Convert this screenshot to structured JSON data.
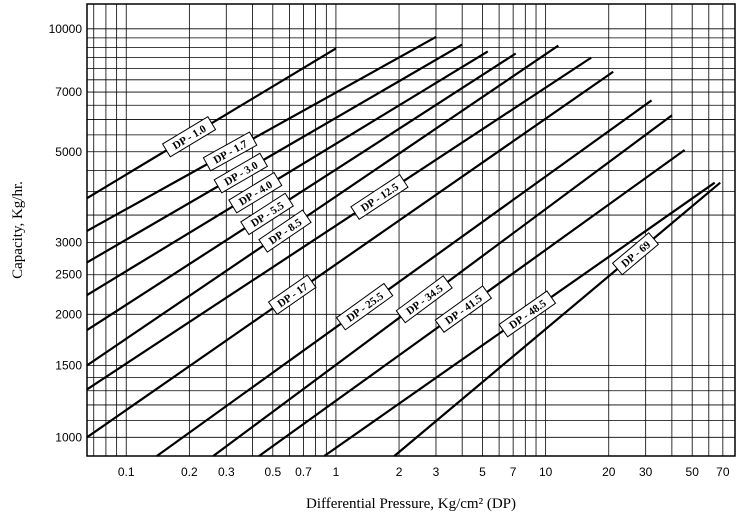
{
  "chart_data": {
    "type": "line",
    "title": "",
    "xlabel": "Differential Pressure, Kg/cm² (DP)",
    "ylabel": "Capacity, Kg/hr.",
    "x_scale": "log",
    "y_scale": "log",
    "xlim": [
      0.065,
      80
    ],
    "ylim": [
      900,
      11500
    ],
    "x_ticks": [
      0.1,
      0.2,
      0.3,
      0.5,
      0.7,
      1,
      2,
      3,
      5,
      7,
      10,
      20,
      30,
      50,
      70
    ],
    "x_tick_labels": [
      "0.1",
      "0.2",
      "0.3",
      "0.5",
      "0.7",
      "1",
      "2",
      "3",
      "5",
      "7",
      "10",
      "20",
      "30",
      "50",
      "70"
    ],
    "y_ticks": [
      1000,
      1500,
      2000,
      2500,
      3000,
      5000,
      7000,
      10000
    ],
    "y_tick_labels": [
      "1000",
      "1500",
      "2000",
      "2500",
      "3000",
      "5000",
      "7000",
      "10000"
    ],
    "grid": true,
    "series": [
      {
        "name": "DP - 1.0",
        "x": [
          0.065,
          1.0
        ],
        "y": [
          3850,
          8950
        ]
      },
      {
        "name": "DP - 1.7",
        "x": [
          0.065,
          3.0
        ],
        "y": [
          3200,
          9550
        ]
      },
      {
        "name": "DP - 3.0",
        "x": [
          0.065,
          4.0
        ],
        "y": [
          2680,
          9150
        ]
      },
      {
        "name": "DP - 4.0",
        "x": [
          0.065,
          5.3
        ],
        "y": [
          2230,
          8800
        ]
      },
      {
        "name": "DP - 5.5",
        "x": [
          0.065,
          7.2
        ],
        "y": [
          1830,
          8700
        ]
      },
      {
        "name": "DP - 8.5",
        "x": [
          0.065,
          11.5
        ],
        "y": [
          1500,
          9100
        ]
      },
      {
        "name": "DP - 12.5",
        "x": [
          0.065,
          16.5
        ],
        "y": [
          1310,
          8500
        ]
      },
      {
        "name": "DP - 17",
        "x": [
          0.065,
          21
        ],
        "y": [
          1000,
          7850
        ]
      },
      {
        "name": "DP - 25.5",
        "x": [
          0.14,
          32
        ],
        "y": [
          900,
          6680
        ]
      },
      {
        "name": "DP - 34.5",
        "x": [
          0.26,
          40
        ],
        "y": [
          900,
          6140
        ]
      },
      {
        "name": "DP - 41.5",
        "x": [
          0.43,
          46
        ],
        "y": [
          900,
          5050
        ]
      },
      {
        "name": "DP - 48.5",
        "x": [
          0.88,
          64
        ],
        "y": [
          900,
          4200
        ]
      },
      {
        "name": "DP - 69",
        "x": [
          1.9,
          68
        ],
        "y": [
          900,
          4200
        ]
      }
    ]
  }
}
